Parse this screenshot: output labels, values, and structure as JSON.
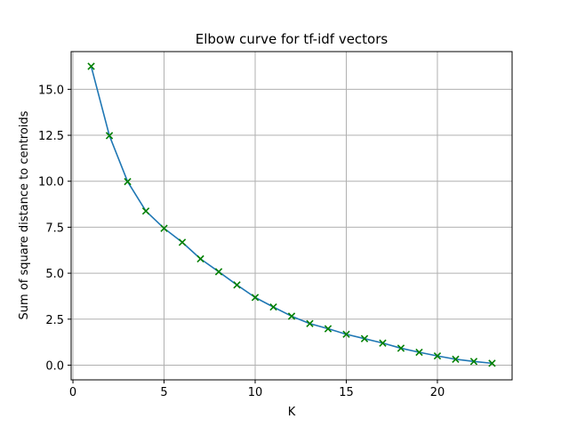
{
  "chart_data": {
    "type": "line",
    "title": "Elbow curve for tf-idf vectors",
    "xlabel": "K",
    "ylabel": "Sum of square distance to centroids",
    "x": [
      1,
      2,
      3,
      4,
      5,
      6,
      7,
      8,
      9,
      10,
      11,
      12,
      13,
      14,
      15,
      16,
      17,
      18,
      19,
      20,
      21,
      22,
      23
    ],
    "series": [
      {
        "values": [
          16.25,
          12.48,
          9.98,
          8.38,
          7.44,
          6.68,
          5.78,
          5.08,
          4.36,
          3.68,
          3.16,
          2.66,
          2.26,
          1.98,
          1.68,
          1.44,
          1.2,
          0.92,
          0.7,
          0.5,
          0.32,
          0.2,
          0.1
        ],
        "line_color": "#1f77b4",
        "marker": "x",
        "marker_color": "#008000"
      }
    ],
    "xlim": [
      -0.1,
      24.1
    ],
    "ylim": [
      -0.8,
      17.05
    ],
    "xticks": [
      0,
      5,
      10,
      15,
      20
    ],
    "xtick_labels": [
      "0",
      "5",
      "10",
      "15",
      "20"
    ],
    "yticks": [
      0,
      2.5,
      5,
      7.5,
      10,
      12.5,
      15
    ],
    "ytick_labels": [
      "0.0",
      "2.5",
      "5.0",
      "7.5",
      "10.0",
      "12.5",
      "15.0"
    ],
    "grid": true,
    "legend": "none"
  }
}
